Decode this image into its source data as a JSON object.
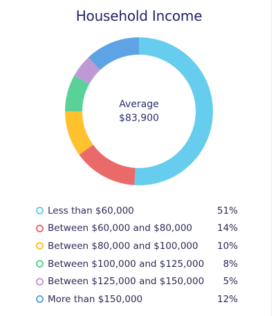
{
  "chart_data": {
    "type": "pie",
    "title": "Household Income",
    "center_label": "Average",
    "center_value": "$83,900",
    "categories": [
      "Less than $60,000",
      "Between $60,000 and $80,000",
      "Between $80,000 and $100,000",
      "Between $100,000 and $125,000",
      "Between $125,000 and $150,000",
      "More than $150,000"
    ],
    "values": [
      51,
      14,
      10,
      8,
      5,
      12
    ],
    "value_labels": [
      "51%",
      "14%",
      "10%",
      "8%",
      "5%",
      "12%"
    ],
    "colors": [
      "#66cdee",
      "#ea6a6a",
      "#ffc22e",
      "#59d197",
      "#bd9ad6",
      "#5ea3e4"
    ],
    "legend_position": "bottom"
  }
}
